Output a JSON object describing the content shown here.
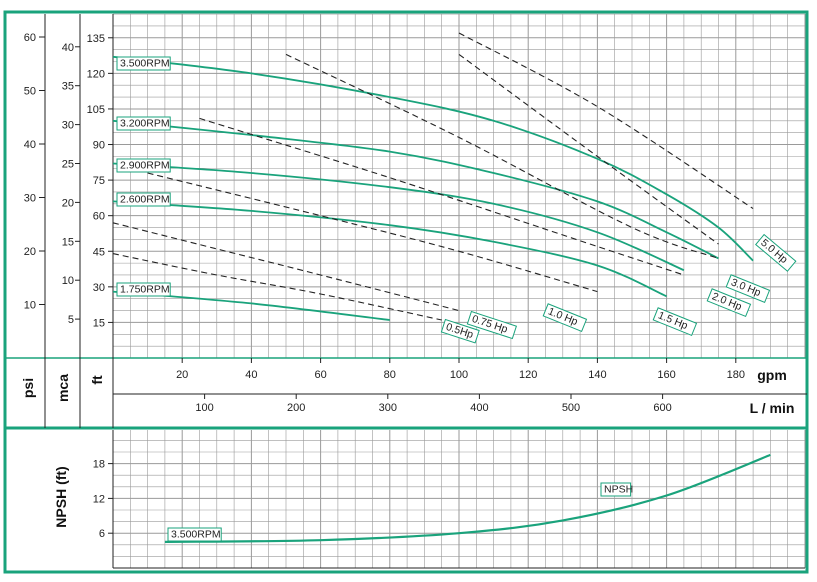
{
  "theme": {
    "frame": "#1aa37c",
    "curve": "#1aa37c",
    "grid": "#9a9a9a",
    "dashed": "#222222"
  },
  "axes": {
    "psi": {
      "label": "psi",
      "ticks": [
        10,
        20,
        30,
        40,
        50,
        60
      ]
    },
    "mca": {
      "label": "mca",
      "ticks": [
        5,
        10,
        15,
        20,
        25,
        30,
        35,
        40
      ]
    },
    "ft": {
      "label": "ft",
      "ticks": [
        15,
        30,
        45,
        60,
        75,
        90,
        105,
        120,
        135
      ]
    },
    "gpm": {
      "label": "gpm",
      "ticks": [
        20,
        40,
        60,
        80,
        100,
        120,
        140,
        160,
        180
      ]
    },
    "lmin": {
      "label": "L / min",
      "ticks": [
        100,
        200,
        300,
        400,
        500,
        600
      ]
    },
    "npsh": {
      "label": "NPSH (ft)",
      "ticks": [
        6,
        12,
        18
      ]
    }
  },
  "chart_data": [
    {
      "type": "line",
      "x_unit": "gpm",
      "y_unit": "ft",
      "xlim": [
        0,
        200
      ],
      "ylim": [
        0,
        145
      ],
      "grid": true,
      "series": [
        {
          "name": "3.500RPM",
          "style": "solid",
          "x": [
            0,
            40,
            80,
            110,
            140,
            160,
            175,
            185
          ],
          "y": [
            127,
            120,
            110,
            100,
            84,
            69,
            55,
            41
          ]
        },
        {
          "name": "3.200RPM",
          "style": "solid",
          "x": [
            0,
            40,
            80,
            110,
            140,
            160,
            175
          ],
          "y": [
            100,
            94,
            87,
            78,
            66,
            53,
            42
          ]
        },
        {
          "name": "2.900RPM",
          "style": "solid",
          "x": [
            0,
            40,
            80,
            110,
            140,
            165
          ],
          "y": [
            82,
            78,
            72,
            65,
            53,
            37
          ]
        },
        {
          "name": "2.600RPM",
          "style": "solid",
          "x": [
            0,
            40,
            80,
            110,
            140,
            160
          ],
          "y": [
            66,
            62,
            56,
            49,
            39,
            26
          ]
        },
        {
          "name": "1.750RPM",
          "style": "solid",
          "x": [
            0,
            40,
            80
          ],
          "y": [
            28,
            23,
            16
          ]
        },
        {
          "name": "0.5Hp",
          "style": "dashed",
          "x": [
            0,
            30,
            60,
            95
          ],
          "y": [
            44,
            35,
            27,
            16
          ]
        },
        {
          "name": "0.75 Hp",
          "style": "dashed",
          "x": [
            0,
            30,
            60,
            100
          ],
          "y": [
            57,
            46,
            35,
            20
          ]
        },
        {
          "name": "1.0 Hp",
          "style": "dashed",
          "x": [
            10,
            60,
            100,
            140
          ],
          "y": [
            78,
            60,
            45,
            28
          ]
        },
        {
          "name": "1.5 Hp",
          "style": "dashed",
          "x": [
            25,
            80,
            140,
            165
          ],
          "y": [
            101,
            76,
            47,
            35
          ]
        },
        {
          "name": "2.0 Hp",
          "style": "dashed",
          "x": [
            50,
            100,
            150,
            175
          ],
          "y": [
            128,
            93,
            55,
            42
          ]
        },
        {
          "name": "3.0 Hp",
          "style": "dashed",
          "x": [
            100,
            140,
            175
          ],
          "y": [
            128,
            85,
            48
          ]
        },
        {
          "name": "5.0 Hp",
          "style": "dashed",
          "x": [
            100,
            140,
            185
          ],
          "y": [
            137,
            106,
            63
          ]
        }
      ]
    },
    {
      "type": "line",
      "x_unit": "gpm",
      "y_unit": "ft",
      "xlim": [
        0,
        200
      ],
      "ylim": [
        0,
        22
      ],
      "ylabel": "NPSH (ft)",
      "grid": true,
      "annotation": "NPSH",
      "series": [
        {
          "name": "3.500RPM",
          "style": "solid",
          "x": [
            15,
            60,
            100,
            130,
            160,
            190
          ],
          "y": [
            4.5,
            4.8,
            6,
            8.2,
            12.5,
            19.5
          ]
        }
      ]
    }
  ]
}
